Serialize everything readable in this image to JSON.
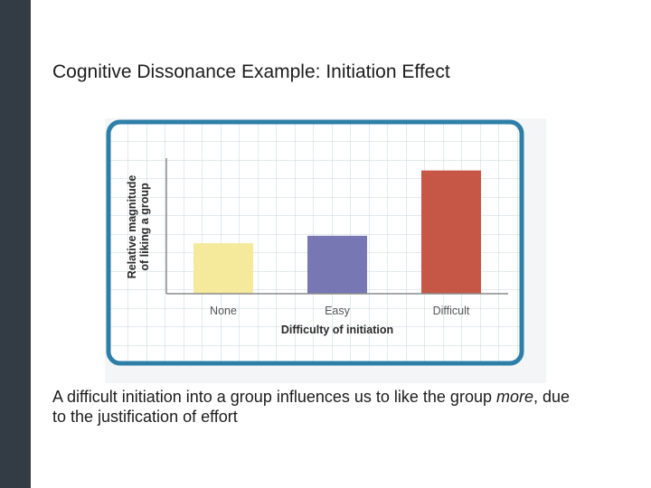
{
  "slide": {
    "title": "Cognitive Dissonance Example: Initiation Effect",
    "body_before": "A difficult initiation into a group influences us to like the group ",
    "body_emphasis": "more",
    "body_after": ", due to the justification of effort"
  },
  "colors": {
    "sidebar": "#333c44",
    "frame": "#2e7fa8",
    "grid": "#c9d6dd",
    "bar_none": "#f5ea9c",
    "bar_easy": "#7777b3",
    "bar_difficult": "#c65747"
  },
  "chart_data": {
    "type": "bar",
    "categories": [
      "None",
      "Easy",
      "Difficult"
    ],
    "values": [
      0.41,
      0.47,
      1.0
    ],
    "value_scale": "relative",
    "xlabel": "Difficulty of initiation",
    "ylabel_lines": [
      "Relative magnitude",
      "of liking a group"
    ],
    "ylim": [
      0,
      1.1
    ],
    "grid": true,
    "legend": "none"
  }
}
